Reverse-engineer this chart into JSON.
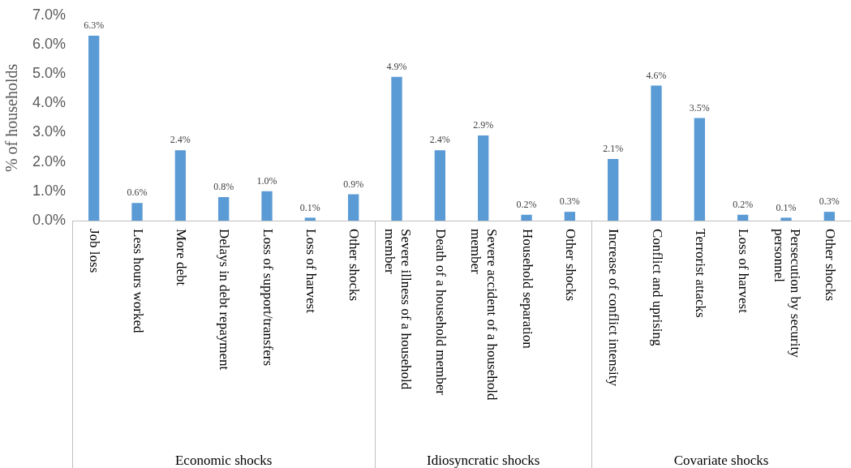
{
  "chart_data": {
    "type": "bar",
    "ylabel": "% of households",
    "categories": [
      "Job loss",
      "Less hours worked",
      "More debt",
      "Delays in debt repayment",
      "Loss of support/transfers",
      "Loss of harvest",
      "Other shocks",
      "Severe illness of a household member",
      "Death of a household member",
      "Severe accident of a household member",
      "Household separation",
      "Other shocks",
      "Increase of conflict intensity",
      "Conflict and uprising",
      "Terrorist attacks",
      "Loss of harvest",
      "Persecution by security personnel",
      "Other shocks"
    ],
    "values": [
      6.3,
      0.6,
      2.4,
      0.8,
      1.0,
      0.1,
      0.9,
      4.9,
      2.4,
      2.9,
      0.2,
      0.3,
      2.1,
      4.6,
      3.5,
      0.2,
      0.1,
      0.3
    ],
    "value_labels": [
      "6.3%",
      "0.6%",
      "2.4%",
      "0.8%",
      "1.0%",
      "0.1%",
      "0.9%",
      "4.9%",
      "2.4%",
      "2.9%",
      "0.2%",
      "0.3%",
      "2.1%",
      "4.6%",
      "3.5%",
      "0.2%",
      "0.1%",
      "0.3%"
    ],
    "color": "#5b9bd5",
    "ylim": [
      0,
      7
    ],
    "yticks": [
      {
        "value": 0,
        "label": "0.0%"
      },
      {
        "value": 1,
        "label": "1.0%"
      },
      {
        "value": 2,
        "label": "2.0%"
      },
      {
        "value": 3,
        "label": "3.0%"
      },
      {
        "value": 4,
        "label": "4.0%"
      },
      {
        "value": 5,
        "label": "5.0%"
      },
      {
        "value": 6,
        "label": "6.0%"
      },
      {
        "value": 7,
        "label": "7.0%"
      }
    ],
    "annotations": [
      "Economic shocks",
      "Idiosyncratic shocks",
      "Covariate shocks"
    ],
    "grid": false,
    "legend": false
  }
}
